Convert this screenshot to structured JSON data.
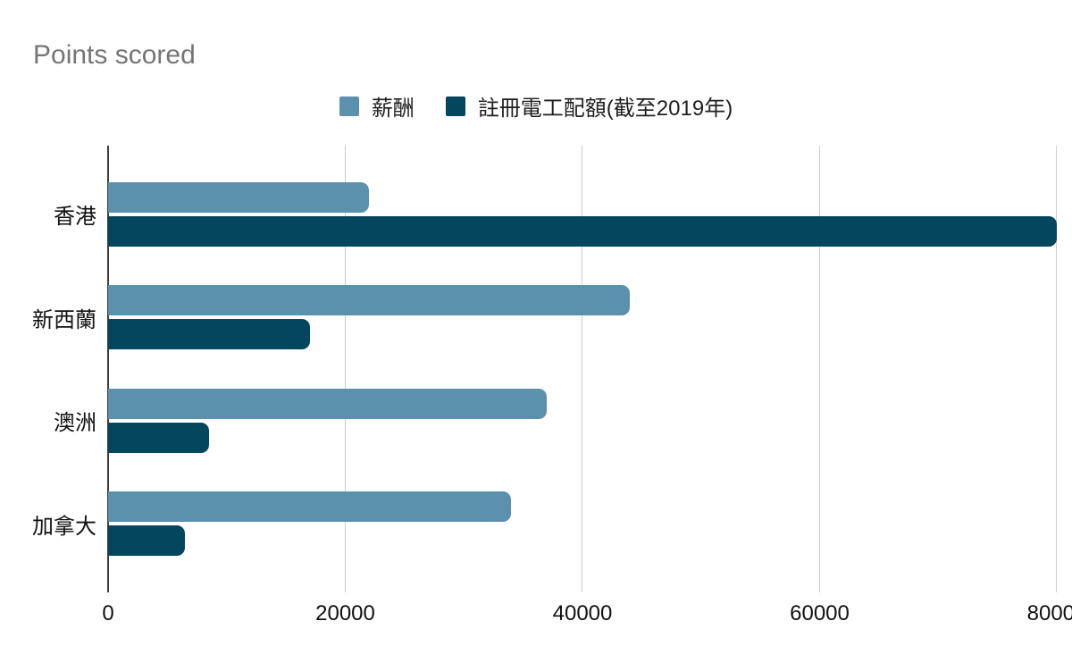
{
  "chart": {
    "title": "Points scored"
  },
  "chart_data": {
    "type": "bar",
    "orientation": "horizontal",
    "title": "Points scored",
    "categories": [
      "香港",
      "新西蘭",
      "澳洲",
      "加拿大"
    ],
    "series": [
      {
        "name": "薪酬",
        "color": "#5b91ad",
        "values": [
          22000,
          44000,
          37000,
          34000
        ]
      },
      {
        "name": "註冊電工配額(截至2019年)",
        "color": "#03465e",
        "values": [
          80000,
          17000,
          8500,
          6500
        ]
      }
    ],
    "xlim": [
      0,
      80000
    ],
    "x_ticks": [
      0,
      20000,
      40000,
      60000,
      80000
    ],
    "grid": true,
    "legend_position": "top",
    "title_color": "#757575",
    "axis_color": "#3f3f3f",
    "gridline_color": "#cccccc",
    "label_color": "#111111"
  }
}
